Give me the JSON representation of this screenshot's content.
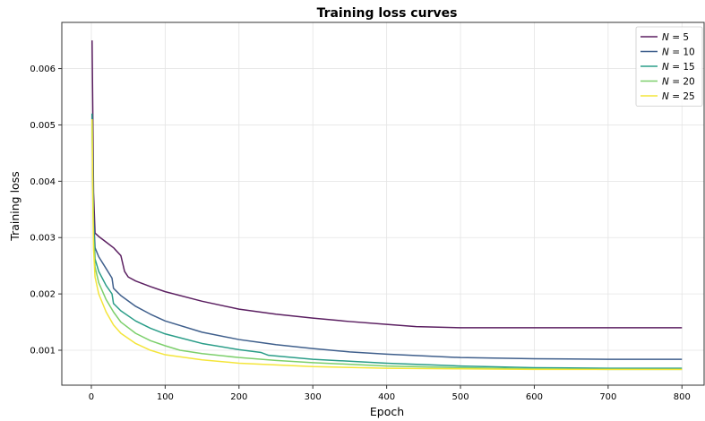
{
  "chart_data": {
    "type": "line",
    "title": "Training loss curves",
    "xlabel": "Epoch",
    "ylabel": "Training loss",
    "xlim": [
      -40,
      830
    ],
    "ylim": [
      0.00038,
      0.00682
    ],
    "xticks": [
      0,
      100,
      200,
      300,
      400,
      500,
      600,
      700,
      800
    ],
    "yticks": [
      0.001,
      0.002,
      0.003,
      0.004,
      0.005,
      0.006
    ],
    "ytick_labels": [
      "0.001",
      "0.002",
      "0.003",
      "0.004",
      "0.005",
      "0.006"
    ],
    "grid": true,
    "legend_position": "top-right",
    "series": [
      {
        "name": "N = 5",
        "name_var": "N",
        "name_val": "5",
        "color": "#5b1f61",
        "x": [
          1,
          2,
          3,
          5,
          10,
          20,
          30,
          40,
          45,
          50,
          60,
          80,
          100,
          150,
          200,
          250,
          300,
          350,
          400,
          440,
          500,
          600,
          700,
          800
        ],
        "y": [
          0.0065,
          0.0052,
          0.0038,
          0.00308,
          0.00302,
          0.00292,
          0.00282,
          0.00268,
          0.0024,
          0.0023,
          0.00223,
          0.00213,
          0.00204,
          0.00187,
          0.00173,
          0.00164,
          0.00157,
          0.00151,
          0.00146,
          0.00142,
          0.0014,
          0.0014,
          0.0014,
          0.0014
        ]
      },
      {
        "name": "N = 10",
        "name_var": "N",
        "name_val": "10",
        "color": "#3f5f8c",
        "x": [
          1,
          2,
          3,
          5,
          10,
          20,
          28,
          30,
          40,
          60,
          80,
          100,
          150,
          200,
          250,
          300,
          350,
          400,
          500,
          600,
          700,
          800
        ],
        "y": [
          0.0052,
          0.0044,
          0.0034,
          0.00282,
          0.00266,
          0.00245,
          0.00228,
          0.0021,
          0.00197,
          0.00178,
          0.00164,
          0.00152,
          0.00132,
          0.00119,
          0.0011,
          0.00103,
          0.00097,
          0.00093,
          0.00087,
          0.00085,
          0.00084,
          0.00084
        ]
      },
      {
        "name": "N = 15",
        "name_var": "N",
        "name_val": "15",
        "color": "#2a9d88",
        "x": [
          1,
          2,
          3,
          5,
          10,
          20,
          28,
          30,
          40,
          60,
          80,
          100,
          150,
          200,
          230,
          240,
          300,
          400,
          500,
          600,
          700,
          800
        ],
        "y": [
          0.0052,
          0.0041,
          0.0032,
          0.00262,
          0.0024,
          0.00215,
          0.002,
          0.00183,
          0.0017,
          0.00152,
          0.00139,
          0.00129,
          0.00112,
          0.00101,
          0.00096,
          0.00091,
          0.00084,
          0.00077,
          0.00072,
          0.00069,
          0.00068,
          0.00068
        ]
      },
      {
        "name": "N = 20",
        "name_var": "N",
        "name_val": "20",
        "color": "#7ccf6b",
        "x": [
          1,
          2,
          3,
          5,
          10,
          20,
          30,
          40,
          60,
          80,
          100,
          120,
          150,
          200,
          250,
          300,
          400,
          500,
          600,
          700,
          800
        ],
        "y": [
          0.0051,
          0.0039,
          0.003,
          0.00248,
          0.0022,
          0.0019,
          0.00168,
          0.0015,
          0.0013,
          0.00117,
          0.00108,
          0.001,
          0.00094,
          0.00087,
          0.00082,
          0.00078,
          0.00072,
          0.00069,
          0.00067,
          0.00066,
          0.00066
        ]
      },
      {
        "name": "N = 25",
        "name_var": "N",
        "name_val": "25",
        "color": "#f4e53a",
        "x": [
          1,
          2,
          3,
          5,
          10,
          20,
          30,
          40,
          60,
          80,
          100,
          150,
          200,
          300,
          400,
          500,
          600,
          700,
          800
        ],
        "y": [
          0.0051,
          0.0037,
          0.0028,
          0.0023,
          0.002,
          0.00168,
          0.00145,
          0.0013,
          0.00112,
          0.001,
          0.00092,
          0.00083,
          0.00077,
          0.00071,
          0.00068,
          0.00067,
          0.00066,
          0.00066,
          0.00066
        ]
      }
    ]
  }
}
